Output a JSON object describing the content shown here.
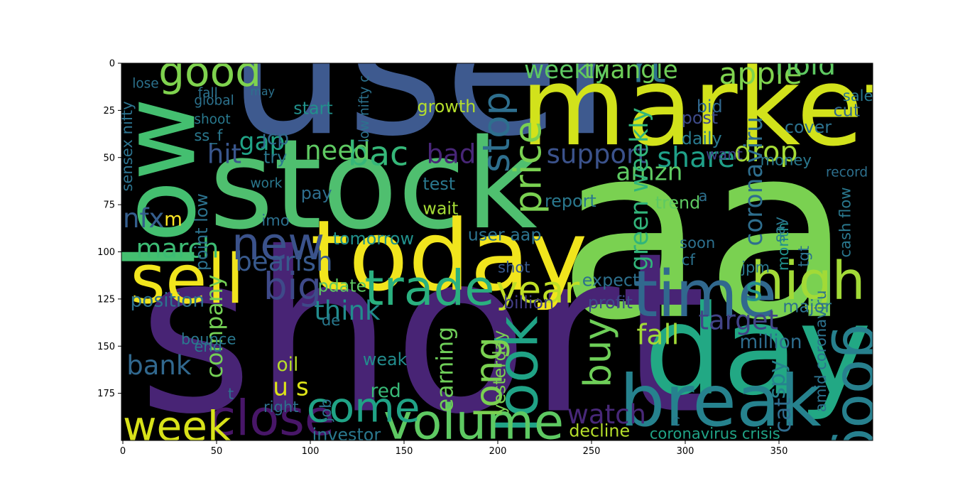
{
  "chart_data": {
    "type": "wordcloud",
    "title": "",
    "xlabel": "",
    "ylabel": "",
    "xlim": [
      0,
      400
    ],
    "ylim": [
      200,
      0
    ],
    "x_ticks": [
      0,
      50,
      100,
      150,
      200,
      250,
      300,
      350
    ],
    "y_ticks": [
      0,
      25,
      50,
      75,
      100,
      125,
      150,
      175
    ],
    "grid": false,
    "background_color": "#000000",
    "palette": [
      "#440154",
      "#3b528b",
      "#21918c",
      "#5ec962",
      "#fde725"
    ],
    "words": [
      {
        "text": "aap",
        "x": 232,
        "y": 134,
        "size": 128,
        "color": "#7ad151",
        "rotate": 0
      },
      {
        "text": "short",
        "x": 8,
        "y": 184,
        "size": 118,
        "color": "#482475",
        "rotate": 0
      },
      {
        "text": "user",
        "x": 56,
        "y": 37,
        "size": 100,
        "color": "#3e5a8f",
        "rotate": 0
      },
      {
        "text": "stock",
        "x": 46,
        "y": 87,
        "size": 66,
        "color": "#4fbf6f",
        "rotate": 0
      },
      {
        "text": "market",
        "x": 212,
        "y": 43,
        "size": 58,
        "color": "#d2e21b",
        "rotate": 0
      },
      {
        "text": "today",
        "x": 100,
        "y": 120,
        "size": 52,
        "color": "#f1e51d",
        "rotate": 0
      },
      {
        "text": "day",
        "x": 278,
        "y": 175,
        "size": 66,
        "color": "#22a884",
        "rotate": 0
      },
      {
        "text": "low",
        "x": 38,
        "y": 110,
        "size": 54,
        "color": "#44bf70",
        "rotate": -90
      },
      {
        "text": "sell",
        "x": 4,
        "y": 127,
        "size": 36,
        "color": "#f1e51d",
        "rotate": 0
      },
      {
        "text": "time",
        "x": 272,
        "y": 134,
        "size": 34,
        "color": "#31688e",
        "rotate": 0
      },
      {
        "text": "break",
        "x": 265,
        "y": 192,
        "size": 38,
        "color": "#26828e",
        "rotate": 0
      },
      {
        "text": "high",
        "x": 335,
        "y": 125,
        "size": 28,
        "color": "#a2da37",
        "rotate": 0
      },
      {
        "text": "goog",
        "x": 384,
        "y": 138,
        "size": 30,
        "color": "#27808e",
        "rotate": 90
      },
      {
        "text": "look",
        "x": 221,
        "y": 196,
        "size": 30,
        "color": "#20a386",
        "rotate": -90
      },
      {
        "text": "trade",
        "x": 129,
        "y": 128,
        "size": 26,
        "color": "#2ab07f",
        "rotate": 0
      },
      {
        "text": "volume",
        "x": 139,
        "y": 199,
        "size": 26,
        "color": "#5ec962",
        "rotate": 0
      },
      {
        "text": "close",
        "x": 46,
        "y": 197,
        "size": 26,
        "color": "#481668",
        "rotate": 0
      },
      {
        "text": "week",
        "x": 0,
        "y": 200,
        "size": 22,
        "color": "#d8e219",
        "rotate": 0
      },
      {
        "text": "come",
        "x": 98,
        "y": 190,
        "size": 22,
        "color": "#20a386",
        "rotate": 0
      },
      {
        "text": "new",
        "x": 58,
        "y": 104,
        "size": 24,
        "color": "#3b528b",
        "rotate": 0
      },
      {
        "text": "big",
        "x": 75,
        "y": 125,
        "size": 20,
        "color": "#3e4a89",
        "rotate": 0
      },
      {
        "text": "good",
        "x": 19,
        "y": 12,
        "size": 22,
        "color": "#7fd34e",
        "rotate": 0
      },
      {
        "text": "rt",
        "x": 272,
        "y": 10,
        "size": 22,
        "color": "#2c728e",
        "rotate": 0
      },
      {
        "text": "year",
        "x": 199,
        "y": 127,
        "size": 20,
        "color": "#c0df25",
        "rotate": 0
      },
      {
        "text": "price",
        "x": 223,
        "y": 80,
        "size": 20,
        "color": "#7ad151",
        "rotate": -90
      },
      {
        "text": "stop",
        "x": 206,
        "y": 58,
        "size": 20,
        "color": "#2e6f8e",
        "rotate": -90
      },
      {
        "text": "long",
        "x": 202,
        "y": 188,
        "size": 20,
        "color": "#7ad151",
        "rotate": -90
      },
      {
        "text": "buy",
        "x": 260,
        "y": 172,
        "size": 20,
        "color": "#6ece58",
        "rotate": -90
      },
      {
        "text": "bac",
        "x": 120,
        "y": 54,
        "size": 18,
        "color": "#35b779",
        "rotate": 0
      },
      {
        "text": "apple",
        "x": 318,
        "y": 11,
        "size": 16,
        "color": "#7fd34e",
        "rotate": 0
      },
      {
        "text": "hold",
        "x": 348,
        "y": 6,
        "size": 15,
        "color": "#5ec962",
        "rotate": 0
      },
      {
        "text": "weekly",
        "x": 214,
        "y": 8,
        "size": 13,
        "color": "#5ec962",
        "rotate": 0
      },
      {
        "text": "triangle",
        "x": 246,
        "y": 8,
        "size": 13,
        "color": "#6ece58",
        "rotate": 0
      },
      {
        "text": "s",
        "x": 332,
        "y": 126,
        "size": 18,
        "color": "#21918c",
        "rotate": 0
      },
      {
        "text": "hit",
        "x": 45,
        "y": 53,
        "size": 14,
        "color": "#39568c",
        "rotate": 0
      },
      {
        "text": "gap",
        "x": 62,
        "y": 46,
        "size": 13,
        "color": "#20a386",
        "rotate": 0
      },
      {
        "text": "jcp",
        "x": 74,
        "y": 43,
        "size": 10,
        "color": "#31688e",
        "rotate": 0
      },
      {
        "text": "need",
        "x": 97,
        "y": 51,
        "size": 14,
        "color": "#5ec962",
        "rotate": 0
      },
      {
        "text": "bad",
        "x": 162,
        "y": 53,
        "size": 14,
        "color": "#482677",
        "rotate": 0
      },
      {
        "text": "support",
        "x": 226,
        "y": 53,
        "size": 14,
        "color": "#3b528b",
        "rotate": 0
      },
      {
        "text": "amzn",
        "x": 263,
        "y": 62,
        "size": 13,
        "color": "#5ec962",
        "rotate": 0
      },
      {
        "text": "share",
        "x": 285,
        "y": 55,
        "size": 15,
        "color": "#1fa088",
        "rotate": 0
      },
      {
        "text": "drop",
        "x": 326,
        "y": 52,
        "size": 15,
        "color": "#a5db36",
        "rotate": 0
      },
      {
        "text": "green weekly",
        "x": 280,
        "y": 110,
        "size": 13,
        "color": "#31b57b",
        "rotate": -90
      },
      {
        "text": "coronaviru",
        "x": 341,
        "y": 97,
        "size": 13,
        "color": "#2e6e8e",
        "rotate": -90
      },
      {
        "text": "march",
        "x": 7,
        "y": 103,
        "size": 14,
        "color": "#3dbc74",
        "rotate": 0
      },
      {
        "text": "bearish",
        "x": 60,
        "y": 110,
        "size": 14,
        "color": "#38598c",
        "rotate": 0
      },
      {
        "text": "nfx",
        "x": 0,
        "y": 87,
        "size": 14,
        "color": "#355e8d",
        "rotate": 0
      },
      {
        "text": "m",
        "x": 22,
        "y": 86,
        "size": 10,
        "color": "#fde725",
        "rotate": 0
      },
      {
        "text": "think",
        "x": 102,
        "y": 136,
        "size": 14,
        "color": "#228c8d",
        "rotate": 0
      },
      {
        "text": "bank",
        "x": 2,
        "y": 165,
        "size": 14,
        "color": "#31688e",
        "rotate": 0
      },
      {
        "text": "company",
        "x": 53,
        "y": 167,
        "size": 12,
        "color": "#74d055",
        "rotate": -90
      },
      {
        "text": "earning",
        "x": 176,
        "y": 185,
        "size": 12,
        "color": "#6ece58",
        "rotate": -90
      },
      {
        "text": "fall",
        "x": 274,
        "y": 149,
        "size": 15,
        "color": "#a2da37",
        "rotate": 0
      },
      {
        "text": "target",
        "x": 307,
        "y": 141,
        "size": 14,
        "color": "#414487",
        "rotate": 0
      },
      {
        "text": "spy",
        "x": 353,
        "y": 178,
        "size": 12,
        "color": "#26828e",
        "rotate": -90
      },
      {
        "text": "cat",
        "x": 356,
        "y": 196,
        "size": 12,
        "color": "#2f6c8e",
        "rotate": -90
      },
      {
        "text": "watch",
        "x": 237,
        "y": 191,
        "size": 14,
        "color": "#482878",
        "rotate": 0
      },
      {
        "text": "u s",
        "x": 80,
        "y": 176,
        "size": 13,
        "color": "#dde318",
        "rotate": 0
      },
      {
        "text": "oil",
        "x": 82,
        "y": 163,
        "size": 10,
        "color": "#b8de29",
        "rotate": 0
      },
      {
        "text": "red",
        "x": 132,
        "y": 177,
        "size": 10,
        "color": "#38b977",
        "rotate": 0
      },
      {
        "text": "weak",
        "x": 128,
        "y": 160,
        "size": 9,
        "color": "#228c8d",
        "rotate": 0
      },
      {
        "text": "right",
        "x": 75,
        "y": 185,
        "size": 8,
        "color": "#2d708e",
        "rotate": 0
      },
      {
        "text": "investor",
        "x": 101,
        "y": 200,
        "size": 9,
        "color": "#2a788e",
        "rotate": 0
      },
      {
        "text": "yesterday",
        "x": 204,
        "y": 186,
        "size": 9,
        "color": "#7ad151",
        "rotate": -90
      },
      {
        "text": "decline",
        "x": 238,
        "y": 198,
        "size": 9,
        "color": "#b5de2b",
        "rotate": 0
      },
      {
        "text": "coronavirus crisis",
        "x": 281,
        "y": 199,
        "size": 8,
        "color": "#20a386",
        "rotate": 0
      },
      {
        "text": "amid coronaviru",
        "x": 375,
        "y": 185,
        "size": 8,
        "color": "#2c728e",
        "rotate": -90
      },
      {
        "text": "million",
        "x": 329,
        "y": 151,
        "size": 10,
        "color": "#2e6e8e",
        "rotate": 0
      },
      {
        "text": "major",
        "x": 352,
        "y": 132,
        "size": 9,
        "color": "#2c728e",
        "rotate": 0
      },
      {
        "text": "profit",
        "x": 248,
        "y": 130,
        "size": 9,
        "color": "#3e4989",
        "rotate": 0
      },
      {
        "text": "expect",
        "x": 245,
        "y": 118,
        "size": 9,
        "color": "#2d708e",
        "rotate": 0
      },
      {
        "text": "billion",
        "x": 203,
        "y": 130,
        "size": 9,
        "color": "#433e85",
        "rotate": 0
      },
      {
        "text": "shot",
        "x": 200,
        "y": 111,
        "size": 8,
        "color": "#38598c",
        "rotate": 0
      },
      {
        "text": "pdate",
        "x": 104,
        "y": 121,
        "size": 9,
        "color": "#5ec962",
        "rotate": 0
      },
      {
        "text": "position",
        "x": 4,
        "y": 129,
        "size": 10,
        "color": "#2c728e",
        "rotate": 0
      },
      {
        "text": "bounce",
        "x": 31,
        "y": 149,
        "size": 8,
        "color": "#2a788e",
        "rotate": 0
      },
      {
        "text": "end",
        "x": 38,
        "y": 153,
        "size": 8,
        "color": "#29798e",
        "rotate": 0
      },
      {
        "text": "tomorrow",
        "x": 112,
        "y": 96,
        "size": 9,
        "color": "#21918c",
        "rotate": 0
      },
      {
        "text": "user aap",
        "x": 184,
        "y": 94,
        "size": 9,
        "color": "#2c728e",
        "rotate": 0
      },
      {
        "text": "wait",
        "x": 160,
        "y": 80,
        "size": 9,
        "color": "#a5db36",
        "rotate": 0
      },
      {
        "text": "test",
        "x": 160,
        "y": 67,
        "size": 9,
        "color": "#2a788e",
        "rotate": 0
      },
      {
        "text": "pay",
        "x": 95,
        "y": 72,
        "size": 9,
        "color": "#2e6e8e",
        "rotate": 0
      },
      {
        "text": "try",
        "x": 75,
        "y": 53,
        "size": 9,
        "color": "#2a788e",
        "rotate": 0
      },
      {
        "text": "start",
        "x": 91,
        "y": 27,
        "size": 9,
        "color": "#21918c",
        "rotate": 0
      },
      {
        "text": "growth",
        "x": 157,
        "y": 26,
        "size": 9,
        "color": "#b5de2b",
        "rotate": 0
      },
      {
        "text": "daily",
        "x": 298,
        "y": 43,
        "size": 9,
        "color": "#29798e",
        "rotate": 0
      },
      {
        "text": "post",
        "x": 298,
        "y": 32,
        "size": 9,
        "color": "#3e4a89",
        "rotate": 0
      },
      {
        "text": "bid",
        "x": 306,
        "y": 26,
        "size": 9,
        "color": "#31688e",
        "rotate": 0
      },
      {
        "text": "cut",
        "x": 379,
        "y": 28,
        "size": 9,
        "color": "#31688e",
        "rotate": 0
      },
      {
        "text": "cover",
        "x": 353,
        "y": 37,
        "size": 9,
        "color": "#2c728e",
        "rotate": 0
      },
      {
        "text": "money",
        "x": 340,
        "y": 54,
        "size": 8,
        "color": "#2a788e",
        "rotate": 0
      },
      {
        "text": "record",
        "x": 375,
        "y": 60,
        "size": 7,
        "color": "#2d708e",
        "rotate": 0
      },
      {
        "text": "want",
        "x": 311,
        "y": 51,
        "size": 8,
        "color": "#414487",
        "rotate": 0
      },
      {
        "text": "trend",
        "x": 284,
        "y": 77,
        "size": 9,
        "color": "#5ec962",
        "rotate": 0
      },
      {
        "text": "report",
        "x": 225,
        "y": 76,
        "size": 9,
        "color": "#2a788e",
        "rotate": 0
      },
      {
        "text": "soon",
        "x": 297,
        "y": 98,
        "size": 8,
        "color": "#2d708e",
        "rotate": 0
      },
      {
        "text": "cf",
        "x": 298,
        "y": 107,
        "size": 8,
        "color": "#2c728e",
        "rotate": 0
      },
      {
        "text": "month",
        "x": 355,
        "y": 110,
        "size": 8,
        "color": "#21918c",
        "rotate": -90
      },
      {
        "text": "tgt",
        "x": 366,
        "y": 108,
        "size": 8,
        "color": "#2c728e",
        "rotate": -90
      },
      {
        "text": "cash flow",
        "x": 388,
        "y": 103,
        "size": 8,
        "color": "#2a788e",
        "rotate": -90
      },
      {
        "text": "jpm",
        "x": 330,
        "y": 111,
        "size": 8,
        "color": "#2a788e",
        "rotate": 0
      },
      {
        "text": "imo",
        "x": 74,
        "y": 86,
        "size": 8,
        "color": "#2d708e",
        "rotate": 0
      },
      {
        "text": "point low",
        "x": 45,
        "y": 110,
        "size": 9,
        "color": "#2c728e",
        "rotate": -90
      },
      {
        "text": "de",
        "x": 106,
        "y": 139,
        "size": 8,
        "color": "#29798e",
        "rotate": 0
      },
      {
        "text": "job",
        "x": 111,
        "y": 190,
        "size": 8,
        "color": "#2c728e",
        "rotate": -90
      },
      {
        "text": "t",
        "x": 56,
        "y": 178,
        "size": 8,
        "color": "#2c728e",
        "rotate": 0
      },
      {
        "text": "c",
        "x": 293,
        "y": 192,
        "size": 8,
        "color": "#2a788e",
        "rotate": 0
      },
      {
        "text": "a",
        "x": 307,
        "y": 73,
        "size": 8,
        "color": "#2d708e",
        "rotate": 0
      },
      {
        "text": "sensex nifty",
        "x": 5,
        "y": 68,
        "size": 8,
        "color": "#2c728e",
        "rotate": -90
      },
      {
        "text": "low nifty c",
        "x": 131,
        "y": 42,
        "size": 7,
        "color": "#2c728e",
        "rotate": -90
      },
      {
        "text": "ss_f",
        "x": 38,
        "y": 41,
        "size": 8,
        "color": "#2a788e",
        "rotate": 0
      },
      {
        "text": "shoot",
        "x": 38,
        "y": 32,
        "size": 7,
        "color": "#29798e",
        "rotate": 0
      },
      {
        "text": "global",
        "x": 38,
        "y": 22,
        "size": 7,
        "color": "#2c728e",
        "rotate": 0
      },
      {
        "text": "fall",
        "x": 40,
        "y": 18,
        "size": 7,
        "color": "#2c728e",
        "rotate": 0
      },
      {
        "text": "lose",
        "x": 5,
        "y": 13,
        "size": 7,
        "color": "#2c728e",
        "rotate": 0
      },
      {
        "text": "may",
        "x": 68,
        "y": 17,
        "size": 6,
        "color": "#2c728e",
        "rotate": 0
      },
      {
        "text": "work",
        "x": 68,
        "y": 66,
        "size": 7,
        "color": "#2a788e",
        "rotate": 0
      },
      {
        "text": "sale",
        "x": 384,
        "y": 20,
        "size": 8,
        "color": "#2a788e",
        "rotate": 0
      },
      {
        "text": "say",
        "x": 353,
        "y": 95,
        "size": 8,
        "color": "#2a788e",
        "rotate": -90
      }
    ]
  }
}
